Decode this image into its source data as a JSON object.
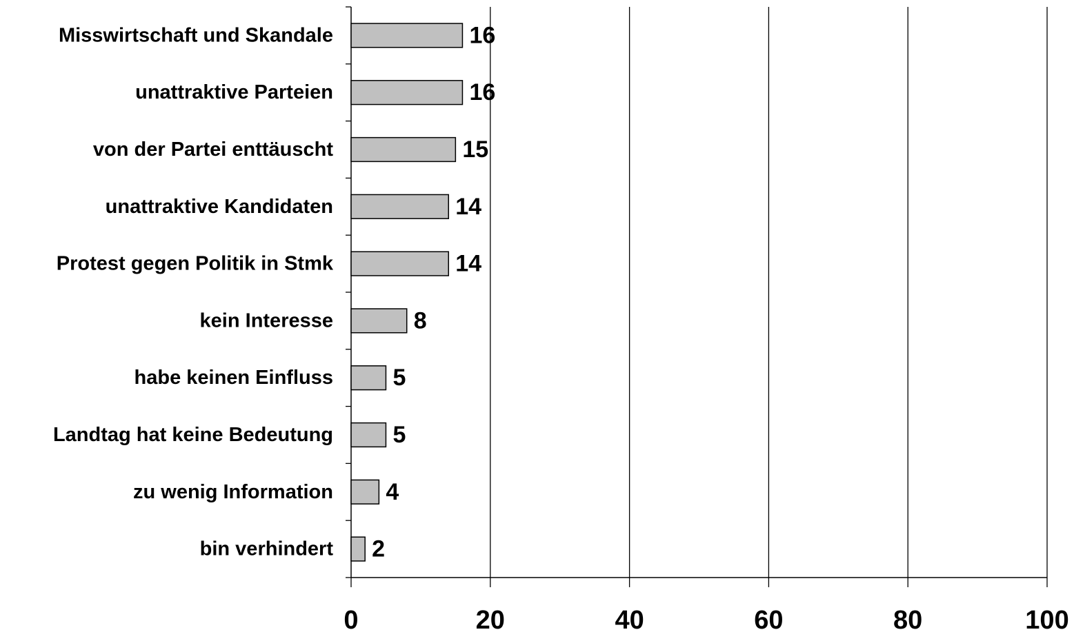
{
  "chart_data": {
    "type": "bar",
    "orientation": "horizontal",
    "categories": [
      "Misswirtschaft und Skandale",
      "unattraktive Parteien",
      "von der Partei enttäuscht",
      "unattraktive Kandidaten",
      "Protest gegen Politik in Stmk",
      "kein Interesse",
      "habe keinen Einfluss",
      "Landtag hat keine Bedeutung",
      "zu wenig Information",
      "bin verhindert"
    ],
    "values": [
      16,
      16,
      15,
      14,
      14,
      8,
      5,
      5,
      4,
      2
    ],
    "xlim": [
      0,
      100
    ],
    "xticks": [
      0,
      20,
      40,
      60,
      80,
      100
    ],
    "grid": true,
    "bar_color": "#c0c0c0",
    "data_labels": true
  }
}
